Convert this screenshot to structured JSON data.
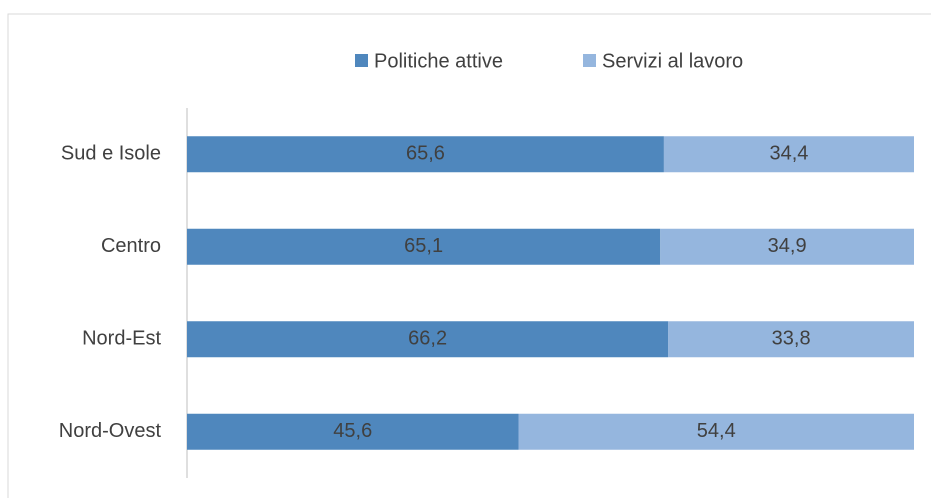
{
  "chart_data": {
    "type": "bar",
    "orientation": "horizontal",
    "stacked": true,
    "categories": [
      "Sud e Isole",
      "Centro",
      "Nord-Est",
      "Nord-Ovest"
    ],
    "series": [
      {
        "name": "Politiche attive",
        "color": "#4f87bd",
        "values": [
          65.6,
          65.1,
          66.2,
          45.6
        ],
        "value_labels": [
          "65,6",
          "65,1",
          "66,2",
          "45,6"
        ]
      },
      {
        "name": "Servizi al lavoro",
        "color": "#95b6de",
        "values": [
          34.4,
          34.9,
          33.8,
          54.4
        ],
        "value_labels": [
          "34,4",
          "34,9",
          "33,8",
          "54,4"
        ]
      }
    ],
    "xlim": [
      0,
      100
    ],
    "legend": "top"
  }
}
